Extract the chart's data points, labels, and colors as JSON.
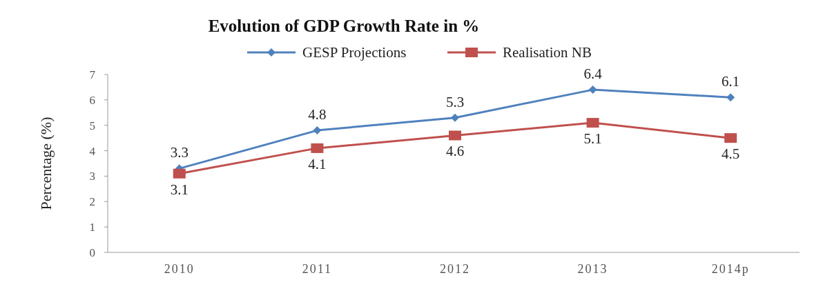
{
  "chart_data": {
    "type": "line",
    "title": "Evolution of GDP Growth Rate in %",
    "ylabel": "Percentage (%)",
    "categories": [
      "2010",
      "2011",
      "2012",
      "2013",
      "2014p"
    ],
    "series": [
      {
        "name": "GESP Projections",
        "color": "#4f81bd",
        "marker": "diamond",
        "values": [
          3.3,
          4.8,
          5.3,
          6.4,
          6.1
        ]
      },
      {
        "name": "Realisation NB",
        "color": "#c0504d",
        "marker": "square",
        "values": [
          3.1,
          4.1,
          4.6,
          5.1,
          4.5
        ]
      }
    ],
    "ylim": [
      0,
      7
    ],
    "yticks": [
      0,
      1,
      2,
      3,
      4,
      5,
      6,
      7
    ],
    "grid": false,
    "legend": "top",
    "data_labels": true
  }
}
